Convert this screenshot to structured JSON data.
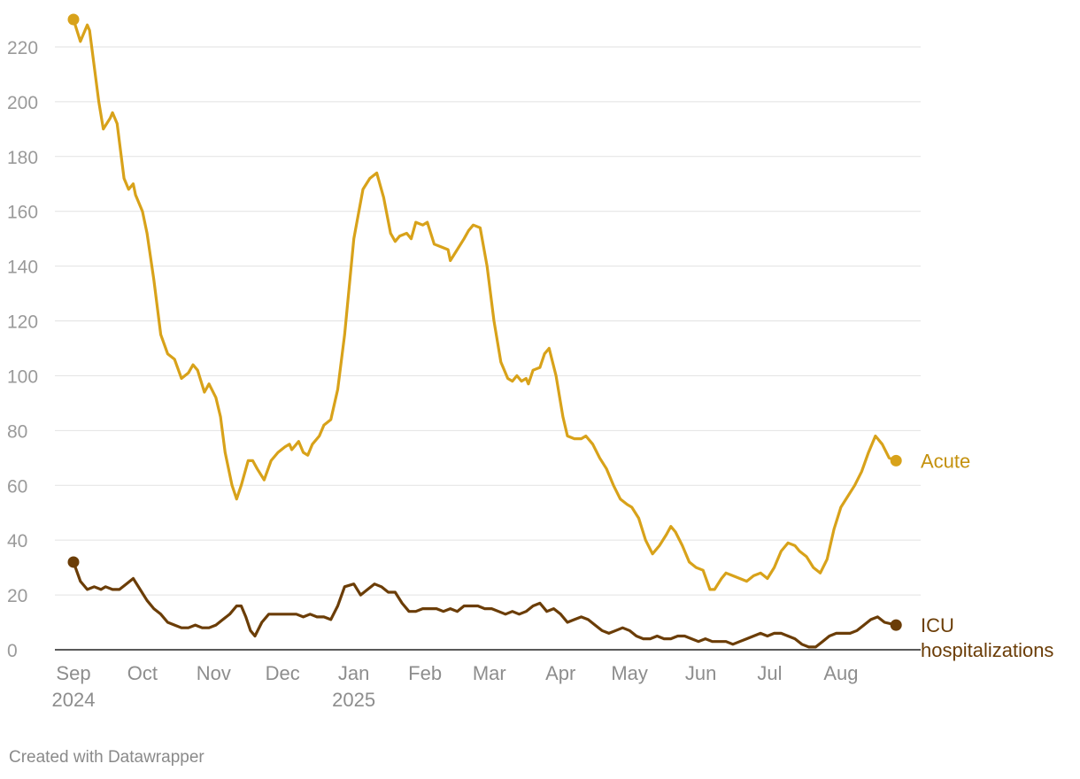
{
  "credit": "Created with Datawrapper",
  "colors": {
    "acute": "#d8a21a",
    "icu": "#6b3d07",
    "acute_label": "#c4910d",
    "icu_label": "#6b3d07",
    "gridline": "#e2e2e2",
    "baseline": "#222222"
  },
  "chart_data": {
    "type": "line",
    "title": "",
    "xlabel": "",
    "ylabel": "",
    "ylim": [
      0,
      230
    ],
    "yticks": [
      0,
      20,
      40,
      60,
      80,
      100,
      120,
      140,
      160,
      180,
      200,
      220
    ],
    "xlim": [
      "2024-09-01",
      "2025-08-28"
    ],
    "xticks": [
      {
        "date": "2024-09-01",
        "label": "Sep",
        "year": "2024"
      },
      {
        "date": "2024-10-01",
        "label": "Oct",
        "year": ""
      },
      {
        "date": "2024-11-01",
        "label": "Nov",
        "year": ""
      },
      {
        "date": "2024-12-01",
        "label": "Dec",
        "year": ""
      },
      {
        "date": "2025-01-01",
        "label": "Jan",
        "year": "2025"
      },
      {
        "date": "2025-02-01",
        "label": "Feb",
        "year": ""
      },
      {
        "date": "2025-03-01",
        "label": "Mar",
        "year": ""
      },
      {
        "date": "2025-04-01",
        "label": "Apr",
        "year": ""
      },
      {
        "date": "2025-05-01",
        "label": "May",
        "year": ""
      },
      {
        "date": "2025-06-01",
        "label": "Jun",
        "year": ""
      },
      {
        "date": "2025-07-01",
        "label": "Jul",
        "year": ""
      },
      {
        "date": "2025-08-01",
        "label": "Aug",
        "year": ""
      }
    ],
    "grid": true,
    "legend": "direct labels at line ends",
    "series": [
      {
        "name": "Acute",
        "color": "#d8a21a",
        "points": [
          [
            "2024-09-01",
            230
          ],
          [
            "2024-09-04",
            222
          ],
          [
            "2024-09-07",
            228
          ],
          [
            "2024-09-08",
            226
          ],
          [
            "2024-09-12",
            200
          ],
          [
            "2024-09-14",
            190
          ],
          [
            "2024-09-17",
            194
          ],
          [
            "2024-09-18",
            196
          ],
          [
            "2024-09-20",
            192
          ],
          [
            "2024-09-23",
            172
          ],
          [
            "2024-09-25",
            168
          ],
          [
            "2024-09-27",
            170
          ],
          [
            "2024-09-28",
            166
          ],
          [
            "2024-10-01",
            160
          ],
          [
            "2024-10-03",
            152
          ],
          [
            "2024-10-06",
            135
          ],
          [
            "2024-10-09",
            115
          ],
          [
            "2024-10-12",
            108
          ],
          [
            "2024-10-15",
            106
          ],
          [
            "2024-10-18",
            99
          ],
          [
            "2024-10-21",
            101
          ],
          [
            "2024-10-23",
            104
          ],
          [
            "2024-10-25",
            102
          ],
          [
            "2024-10-28",
            94
          ],
          [
            "2024-10-30",
            97
          ],
          [
            "2024-11-02",
            92
          ],
          [
            "2024-11-04",
            85
          ],
          [
            "2024-11-06",
            72
          ],
          [
            "2024-11-09",
            60
          ],
          [
            "2024-11-11",
            55
          ],
          [
            "2024-11-13",
            60
          ],
          [
            "2024-11-16",
            69
          ],
          [
            "2024-11-18",
            69
          ],
          [
            "2024-11-20",
            66
          ],
          [
            "2024-11-23",
            62
          ],
          [
            "2024-11-26",
            69
          ],
          [
            "2024-11-29",
            72
          ],
          [
            "2024-12-02",
            74
          ],
          [
            "2024-12-04",
            75
          ],
          [
            "2024-12-05",
            73
          ],
          [
            "2024-12-08",
            76
          ],
          [
            "2024-12-10",
            72
          ],
          [
            "2024-12-12",
            71
          ],
          [
            "2024-12-14",
            75
          ],
          [
            "2024-12-17",
            78
          ],
          [
            "2024-12-19",
            82
          ],
          [
            "2024-12-22",
            84
          ],
          [
            "2024-12-25",
            95
          ],
          [
            "2024-12-28",
            115
          ],
          [
            "2025-01-01",
            150
          ],
          [
            "2025-01-05",
            168
          ],
          [
            "2025-01-08",
            172
          ],
          [
            "2025-01-11",
            174
          ],
          [
            "2025-01-14",
            165
          ],
          [
            "2025-01-17",
            152
          ],
          [
            "2025-01-19",
            149
          ],
          [
            "2025-01-21",
            151
          ],
          [
            "2025-01-24",
            152
          ],
          [
            "2025-01-26",
            150
          ],
          [
            "2025-01-28",
            156
          ],
          [
            "2025-01-31",
            155
          ],
          [
            "2025-02-02",
            156
          ],
          [
            "2025-02-05",
            148
          ],
          [
            "2025-02-08",
            147
          ],
          [
            "2025-02-11",
            146
          ],
          [
            "2025-02-12",
            142
          ],
          [
            "2025-02-15",
            146
          ],
          [
            "2025-02-18",
            150
          ],
          [
            "2025-02-20",
            153
          ],
          [
            "2025-02-22",
            155
          ],
          [
            "2025-02-25",
            154
          ],
          [
            "2025-02-28",
            140
          ],
          [
            "2025-03-03",
            120
          ],
          [
            "2025-03-06",
            105
          ],
          [
            "2025-03-09",
            99
          ],
          [
            "2025-03-11",
            98
          ],
          [
            "2025-03-13",
            100
          ],
          [
            "2025-03-15",
            98
          ],
          [
            "2025-03-17",
            99
          ],
          [
            "2025-03-18",
            97
          ],
          [
            "2025-03-20",
            102
          ],
          [
            "2025-03-23",
            103
          ],
          [
            "2025-03-25",
            108
          ],
          [
            "2025-03-27",
            110
          ],
          [
            "2025-03-30",
            100
          ],
          [
            "2025-04-02",
            85
          ],
          [
            "2025-04-04",
            78
          ],
          [
            "2025-04-07",
            77
          ],
          [
            "2025-04-10",
            77
          ],
          [
            "2025-04-12",
            78
          ],
          [
            "2025-04-15",
            75
          ],
          [
            "2025-04-18",
            70
          ],
          [
            "2025-04-21",
            66
          ],
          [
            "2025-04-24",
            60
          ],
          [
            "2025-04-27",
            55
          ],
          [
            "2025-04-30",
            53
          ],
          [
            "2025-05-02",
            52
          ],
          [
            "2025-05-05",
            48
          ],
          [
            "2025-05-08",
            40
          ],
          [
            "2025-05-11",
            35
          ],
          [
            "2025-05-14",
            38
          ],
          [
            "2025-05-17",
            42
          ],
          [
            "2025-05-19",
            45
          ],
          [
            "2025-05-21",
            43
          ],
          [
            "2025-05-24",
            38
          ],
          [
            "2025-05-27",
            32
          ],
          [
            "2025-05-30",
            30
          ],
          [
            "2025-06-02",
            29
          ],
          [
            "2025-06-05",
            22
          ],
          [
            "2025-06-07",
            22
          ],
          [
            "2025-06-10",
            26
          ],
          [
            "2025-06-12",
            28
          ],
          [
            "2025-06-15",
            27
          ],
          [
            "2025-06-18",
            26
          ],
          [
            "2025-06-21",
            25
          ],
          [
            "2025-06-24",
            27
          ],
          [
            "2025-06-27",
            28
          ],
          [
            "2025-06-30",
            26
          ],
          [
            "2025-07-03",
            30
          ],
          [
            "2025-07-06",
            36
          ],
          [
            "2025-07-09",
            39
          ],
          [
            "2025-07-12",
            38
          ],
          [
            "2025-07-14",
            36
          ],
          [
            "2025-07-17",
            34
          ],
          [
            "2025-07-20",
            30
          ],
          [
            "2025-07-23",
            28
          ],
          [
            "2025-07-26",
            33
          ],
          [
            "2025-07-29",
            44
          ],
          [
            "2025-08-01",
            52
          ],
          [
            "2025-08-04",
            56
          ],
          [
            "2025-08-07",
            60
          ],
          [
            "2025-08-10",
            65
          ],
          [
            "2025-08-13",
            72
          ],
          [
            "2025-08-16",
            78
          ],
          [
            "2025-08-19",
            75
          ],
          [
            "2025-08-22",
            70
          ],
          [
            "2025-08-25",
            69
          ]
        ]
      },
      {
        "name": "ICU hospitalizations",
        "color": "#6b3d07",
        "points": [
          [
            "2024-09-01",
            32
          ],
          [
            "2024-09-04",
            25
          ],
          [
            "2024-09-07",
            22
          ],
          [
            "2024-09-10",
            23
          ],
          [
            "2024-09-13",
            22
          ],
          [
            "2024-09-15",
            23
          ],
          [
            "2024-09-18",
            22
          ],
          [
            "2024-09-21",
            22
          ],
          [
            "2024-09-24",
            24
          ],
          [
            "2024-09-27",
            26
          ],
          [
            "2024-09-30",
            22
          ],
          [
            "2024-10-03",
            18
          ],
          [
            "2024-10-06",
            15
          ],
          [
            "2024-10-09",
            13
          ],
          [
            "2024-10-12",
            10
          ],
          [
            "2024-10-15",
            9
          ],
          [
            "2024-10-18",
            8
          ],
          [
            "2024-10-21",
            8
          ],
          [
            "2024-10-24",
            9
          ],
          [
            "2024-10-27",
            8
          ],
          [
            "2024-10-30",
            8
          ],
          [
            "2024-11-02",
            9
          ],
          [
            "2024-11-05",
            11
          ],
          [
            "2024-11-08",
            13
          ],
          [
            "2024-11-11",
            16
          ],
          [
            "2024-11-13",
            16
          ],
          [
            "2024-11-15",
            12
          ],
          [
            "2024-11-17",
            7
          ],
          [
            "2024-11-19",
            5
          ],
          [
            "2024-11-22",
            10
          ],
          [
            "2024-11-25",
            13
          ],
          [
            "2024-11-28",
            13
          ],
          [
            "2024-12-01",
            13
          ],
          [
            "2024-12-04",
            13
          ],
          [
            "2024-12-07",
            13
          ],
          [
            "2024-12-10",
            12
          ],
          [
            "2024-12-13",
            13
          ],
          [
            "2024-12-16",
            12
          ],
          [
            "2024-12-19",
            12
          ],
          [
            "2024-12-22",
            11
          ],
          [
            "2024-12-25",
            16
          ],
          [
            "2024-12-28",
            23
          ],
          [
            "2025-01-01",
            24
          ],
          [
            "2025-01-04",
            20
          ],
          [
            "2025-01-07",
            22
          ],
          [
            "2025-01-10",
            24
          ],
          [
            "2025-01-13",
            23
          ],
          [
            "2025-01-16",
            21
          ],
          [
            "2025-01-19",
            21
          ],
          [
            "2025-01-22",
            17
          ],
          [
            "2025-01-25",
            14
          ],
          [
            "2025-01-28",
            14
          ],
          [
            "2025-01-31",
            15
          ],
          [
            "2025-02-03",
            15
          ],
          [
            "2025-02-06",
            15
          ],
          [
            "2025-02-09",
            14
          ],
          [
            "2025-02-12",
            15
          ],
          [
            "2025-02-15",
            14
          ],
          [
            "2025-02-18",
            16
          ],
          [
            "2025-02-21",
            16
          ],
          [
            "2025-02-24",
            16
          ],
          [
            "2025-02-27",
            15
          ],
          [
            "2025-03-02",
            15
          ],
          [
            "2025-03-05",
            14
          ],
          [
            "2025-03-08",
            13
          ],
          [
            "2025-03-11",
            14
          ],
          [
            "2025-03-14",
            13
          ],
          [
            "2025-03-17",
            14
          ],
          [
            "2025-03-20",
            16
          ],
          [
            "2025-03-23",
            17
          ],
          [
            "2025-03-26",
            14
          ],
          [
            "2025-03-29",
            15
          ],
          [
            "2025-04-01",
            13
          ],
          [
            "2025-04-04",
            10
          ],
          [
            "2025-04-07",
            11
          ],
          [
            "2025-04-10",
            12
          ],
          [
            "2025-04-13",
            11
          ],
          [
            "2025-04-16",
            9
          ],
          [
            "2025-04-19",
            7
          ],
          [
            "2025-04-22",
            6
          ],
          [
            "2025-04-25",
            7
          ],
          [
            "2025-04-28",
            8
          ],
          [
            "2025-05-01",
            7
          ],
          [
            "2025-05-04",
            5
          ],
          [
            "2025-05-07",
            4
          ],
          [
            "2025-05-10",
            4
          ],
          [
            "2025-05-13",
            5
          ],
          [
            "2025-05-16",
            4
          ],
          [
            "2025-05-19",
            4
          ],
          [
            "2025-05-22",
            5
          ],
          [
            "2025-05-25",
            5
          ],
          [
            "2025-05-28",
            4
          ],
          [
            "2025-05-31",
            3
          ],
          [
            "2025-06-03",
            4
          ],
          [
            "2025-06-06",
            3
          ],
          [
            "2025-06-09",
            3
          ],
          [
            "2025-06-12",
            3
          ],
          [
            "2025-06-15",
            2
          ],
          [
            "2025-06-18",
            3
          ],
          [
            "2025-06-21",
            4
          ],
          [
            "2025-06-24",
            5
          ],
          [
            "2025-06-27",
            6
          ],
          [
            "2025-06-30",
            5
          ],
          [
            "2025-07-03",
            6
          ],
          [
            "2025-07-06",
            6
          ],
          [
            "2025-07-09",
            5
          ],
          [
            "2025-07-12",
            4
          ],
          [
            "2025-07-15",
            2
          ],
          [
            "2025-07-18",
            1
          ],
          [
            "2025-07-21",
            1
          ],
          [
            "2025-07-24",
            3
          ],
          [
            "2025-07-27",
            5
          ],
          [
            "2025-07-30",
            6
          ],
          [
            "2025-08-02",
            6
          ],
          [
            "2025-08-05",
            6
          ],
          [
            "2025-08-08",
            7
          ],
          [
            "2025-08-11",
            9
          ],
          [
            "2025-08-14",
            11
          ],
          [
            "2025-08-17",
            12
          ],
          [
            "2025-08-20",
            10
          ],
          [
            "2025-08-25",
            9
          ]
        ]
      }
    ],
    "end_labels": {
      "acute": [
        "Acute"
      ],
      "icu": [
        "ICU",
        "hospitalizations"
      ]
    }
  }
}
